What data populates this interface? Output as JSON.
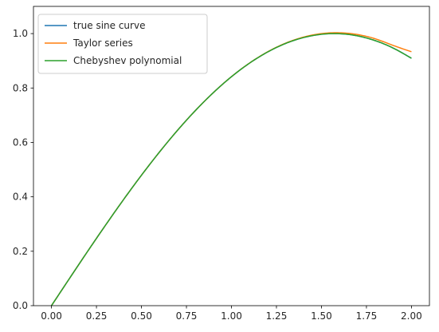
{
  "chart_data": {
    "type": "line",
    "title": "",
    "xlabel": "",
    "ylabel": "",
    "xlim": [
      -0.1,
      2.1
    ],
    "ylim": [
      0.0,
      1.1
    ],
    "grid": false,
    "legend_placement": "top-left",
    "x_ticks": [
      "0.00",
      "0.25",
      "0.50",
      "0.75",
      "1.00",
      "1.25",
      "1.50",
      "1.75",
      "2.00"
    ],
    "y_ticks": [
      "0.0",
      "0.2",
      "0.4",
      "0.6",
      "0.8",
      "1.0"
    ],
    "x": [
      0.0,
      0.1,
      0.2,
      0.3,
      0.4,
      0.5,
      0.6,
      0.7,
      0.8,
      0.9,
      1.0,
      1.1,
      1.2,
      1.3,
      1.4,
      1.5,
      1.6,
      1.7,
      1.8,
      1.9,
      2.0
    ],
    "series": [
      {
        "name": "true sine curve",
        "color": "#1f77b4",
        "values": [
          0.0,
          0.0998,
          0.1987,
          0.2955,
          0.3894,
          0.4794,
          0.5646,
          0.6442,
          0.7174,
          0.7833,
          0.8415,
          0.8912,
          0.932,
          0.9636,
          0.9854,
          0.9975,
          0.9996,
          0.9917,
          0.9738,
          0.9463,
          0.9093
        ]
      },
      {
        "name": "Taylor series",
        "color": "#ff7f0e",
        "values": [
          0.0,
          0.0998,
          0.1987,
          0.2955,
          0.3894,
          0.4794,
          0.5646,
          0.6442,
          0.7174,
          0.7834,
          0.8417,
          0.8915,
          0.9326,
          0.9646,
          0.987,
          0.9999,
          1.003,
          0.9965,
          0.9806,
          0.9562,
          0.9333
        ]
      },
      {
        "name": "Chebyshev polynomial",
        "color": "#2ca02c",
        "values": [
          0.0,
          0.0998,
          0.1987,
          0.2955,
          0.3894,
          0.4794,
          0.5646,
          0.6442,
          0.7174,
          0.7833,
          0.8415,
          0.8912,
          0.932,
          0.9636,
          0.9854,
          0.9975,
          0.9996,
          0.9917,
          0.9738,
          0.9463,
          0.9093
        ]
      }
    ]
  }
}
